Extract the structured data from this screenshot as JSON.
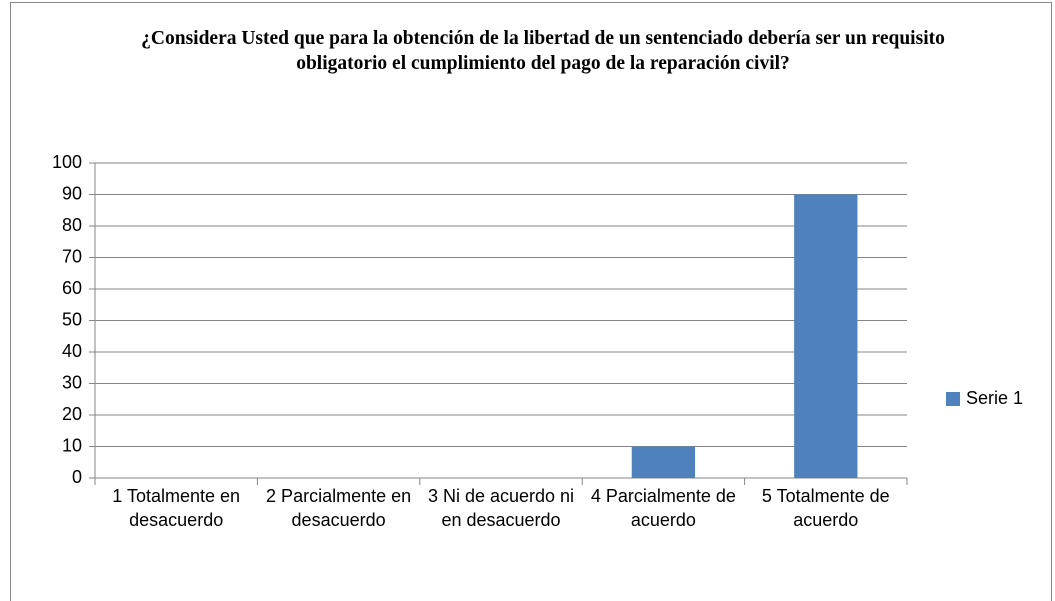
{
  "chart_data": {
    "type": "bar",
    "title": "¿Considera Usted que para la obtención de la libertad de un sentenciado debería ser un requisito obligatorio el cumplimiento del pago de la reparación civil?",
    "categories": [
      "1 Totalmente en desacuerdo",
      "2 Parcialmente en desacuerdo",
      "3 Ni de acuerdo ni en desacuerdo",
      "4 Parcialmente de acuerdo",
      "5 Totalmente de acuerdo"
    ],
    "series": [
      {
        "name": "Serie 1",
        "color": "#4f81bd",
        "values": [
          0,
          0,
          0,
          10,
          90
        ]
      }
    ],
    "ylim": [
      0,
      100
    ],
    "yticks": [
      0,
      10,
      20,
      30,
      40,
      50,
      60,
      70,
      80,
      90,
      100
    ],
    "grid": true,
    "legend": "right"
  }
}
